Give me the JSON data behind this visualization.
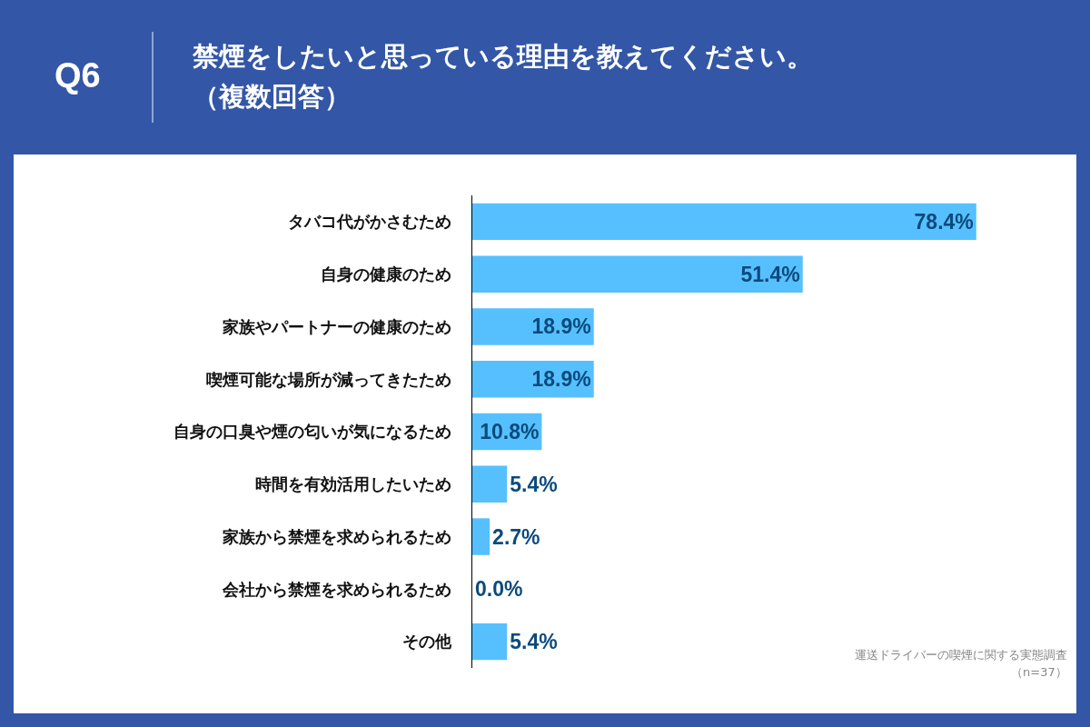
{
  "chart_data": {
    "type": "bar",
    "orientation": "horizontal",
    "subtitle": "Q6",
    "title": "禁煙をしたいと思っている理由を教えてください。（複数回答）",
    "categories": [
      "タバコ代がかさむため",
      "自身の健康のため",
      "家族やパートナーの健康のため",
      "喫煙可能な場所が減ってきたため",
      "自身の口臭や煙の匂いが気になるため",
      "時間を有効活用したいため",
      "家族から禁煙を求められるため",
      "会社から禁煙を求められるため",
      "その他"
    ],
    "values": [
      78.4,
      51.4,
      18.9,
      18.9,
      10.8,
      5.4,
      2.7,
      0.0,
      5.4
    ],
    "color": "#56c0ff",
    "data_labels": true,
    "value_labels": [
      "78.4%",
      "51.4%",
      "18.9%",
      "18.9%",
      "10.8%",
      "5.4%",
      "2.7%",
      "0.0%",
      "5.4%"
    ],
    "tick_labels": "y",
    "annotations": [
      "運送ドライバーの喫煙に関する実態調査",
      "（n=37）"
    ]
  }
}
